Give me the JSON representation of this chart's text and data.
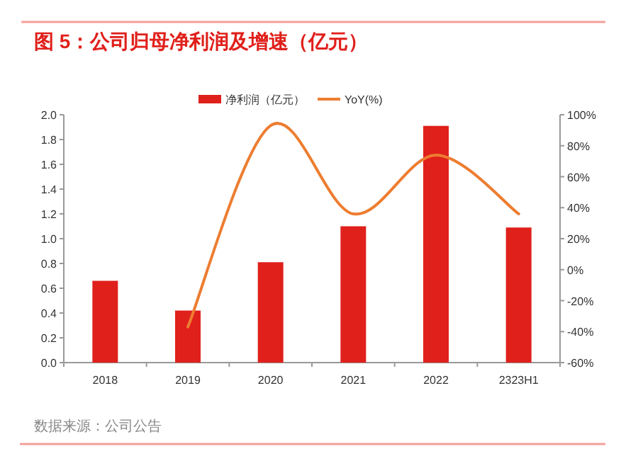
{
  "chart_data": {
    "type": "bar",
    "title": "图 5：公司归母净利润及增速（亿元）",
    "categories": [
      "2018",
      "2019",
      "2020",
      "2021",
      "2022",
      "2323H1"
    ],
    "series": [
      {
        "name": "净利润（亿元）",
        "color": "#e0201b",
        "values": [
          0.66,
          0.42,
          0.81,
          1.1,
          1.91,
          1.09
        ]
      },
      {
        "name": "YoY(%)",
        "type": "line",
        "axis": "y2",
        "color": "#ed7d31",
        "line_style": "solid",
        "values": [
          null,
          -37,
          93,
          36,
          74,
          36
        ]
      }
    ],
    "ylim": [
      0,
      2
    ],
    "yticks": [
      {
        "value": 0,
        "label": "0.0"
      },
      {
        "value": 0.2,
        "label": "0.2"
      },
      {
        "value": 0.4,
        "label": "0.4"
      },
      {
        "value": 0.6,
        "label": "0.6"
      },
      {
        "value": 0.8,
        "label": "0.8"
      },
      {
        "value": 1,
        "label": "1.0"
      },
      {
        "value": 1.2,
        "label": "1.2"
      },
      {
        "value": 1.4,
        "label": "1.4"
      },
      {
        "value": 1.6,
        "label": "1.6"
      },
      {
        "value": 1.8,
        "label": "1.8"
      },
      {
        "value": 2,
        "label": "2.0"
      }
    ],
    "y2lim": [
      -60,
      100
    ],
    "y2ticks": [
      {
        "value": -60,
        "label": "-60%"
      },
      {
        "value": -40,
        "label": "-40%"
      },
      {
        "value": -20,
        "label": "-20%"
      },
      {
        "value": 0,
        "label": "0%"
      },
      {
        "value": 20,
        "label": "20%"
      },
      {
        "value": 40,
        "label": "40%"
      },
      {
        "value": 60,
        "label": "60%"
      },
      {
        "value": 80,
        "label": "80%"
      },
      {
        "value": 100,
        "label": "100%"
      }
    ],
    "legend": "top",
    "grid": false,
    "marker": "none",
    "annotations": [
      "数据来源：公司公告"
    ]
  }
}
